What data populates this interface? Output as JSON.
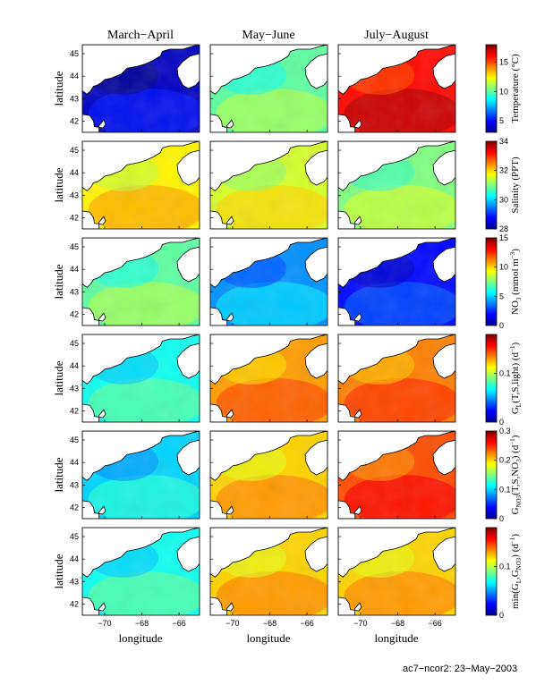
{
  "figure": {
    "columns": [
      "March−April",
      "May−June",
      "July−August"
    ],
    "ylabel": "latitude",
    "xlabel": "longitude",
    "footer": "ac7−ncor2: 23−May−2003"
  },
  "chart_data": {
    "type": "heatmap",
    "x_ticks": [
      -70,
      -68,
      -66
    ],
    "x_tick_labels": [
      "−70",
      "−68",
      "−66"
    ],
    "y_ticks": [
      42,
      43,
      44,
      45
    ],
    "xlim": [
      -71.2,
      -64.9
    ],
    "ylim": [
      41.5,
      45.4
    ],
    "colormap": "jet",
    "rows": [
      {
        "variable": "temperature",
        "colorbar_label": "Temperature (°C)",
        "colorbar_range": [
          3,
          18
        ],
        "colorbar_ticks": [
          5,
          10,
          15
        ],
        "panel_mean": [
          4,
          10,
          16
        ]
      },
      {
        "variable": "salinity",
        "colorbar_label": "Salinity (PPT)",
        "colorbar_range": [
          28,
          34
        ],
        "colorbar_ticks": [
          28,
          30,
          32,
          34
        ],
        "panel_mean": [
          31.8,
          31.5,
          31.0
        ]
      },
      {
        "variable": "nitrate",
        "colorbar_label_parts": [
          "NO",
          "3",
          " (mmol m",
          "−3",
          ")"
        ],
        "colorbar_range": [
          0,
          15
        ],
        "colorbar_ticks": [
          0,
          5,
          10,
          15
        ],
        "panel_mean": [
          7,
          4,
          2
        ]
      },
      {
        "variable": "light_growth",
        "colorbar_label_parts": [
          "G",
          "L",
          "(T,S,light) (d",
          "−1",
          ")"
        ],
        "colorbar_range": [
          0,
          0.18
        ],
        "colorbar_ticks": [
          0,
          0.1
        ],
        "panel_mean": [
          0.07,
          0.13,
          0.135
        ]
      },
      {
        "variable": "nitrate_growth",
        "colorbar_label_parts": [
          "G",
          "NO3",
          "(T,S,NO",
          "3",
          ") (d",
          "−1",
          ")"
        ],
        "colorbar_range": [
          0,
          0.3
        ],
        "colorbar_ticks": [
          0,
          0.1,
          0.2,
          0.3
        ],
        "panel_mean": [
          0.1,
          0.2,
          0.24
        ]
      },
      {
        "variable": "min_growth",
        "colorbar_label_parts": [
          "min(G",
          "L",
          ",G",
          "NO3",
          ") (d",
          "−1",
          ")"
        ],
        "colorbar_range": [
          0,
          0.18
        ],
        "colorbar_ticks": [
          0,
          0.1
        ],
        "panel_mean": [
          0.07,
          0.12,
          0.12
        ]
      }
    ]
  }
}
